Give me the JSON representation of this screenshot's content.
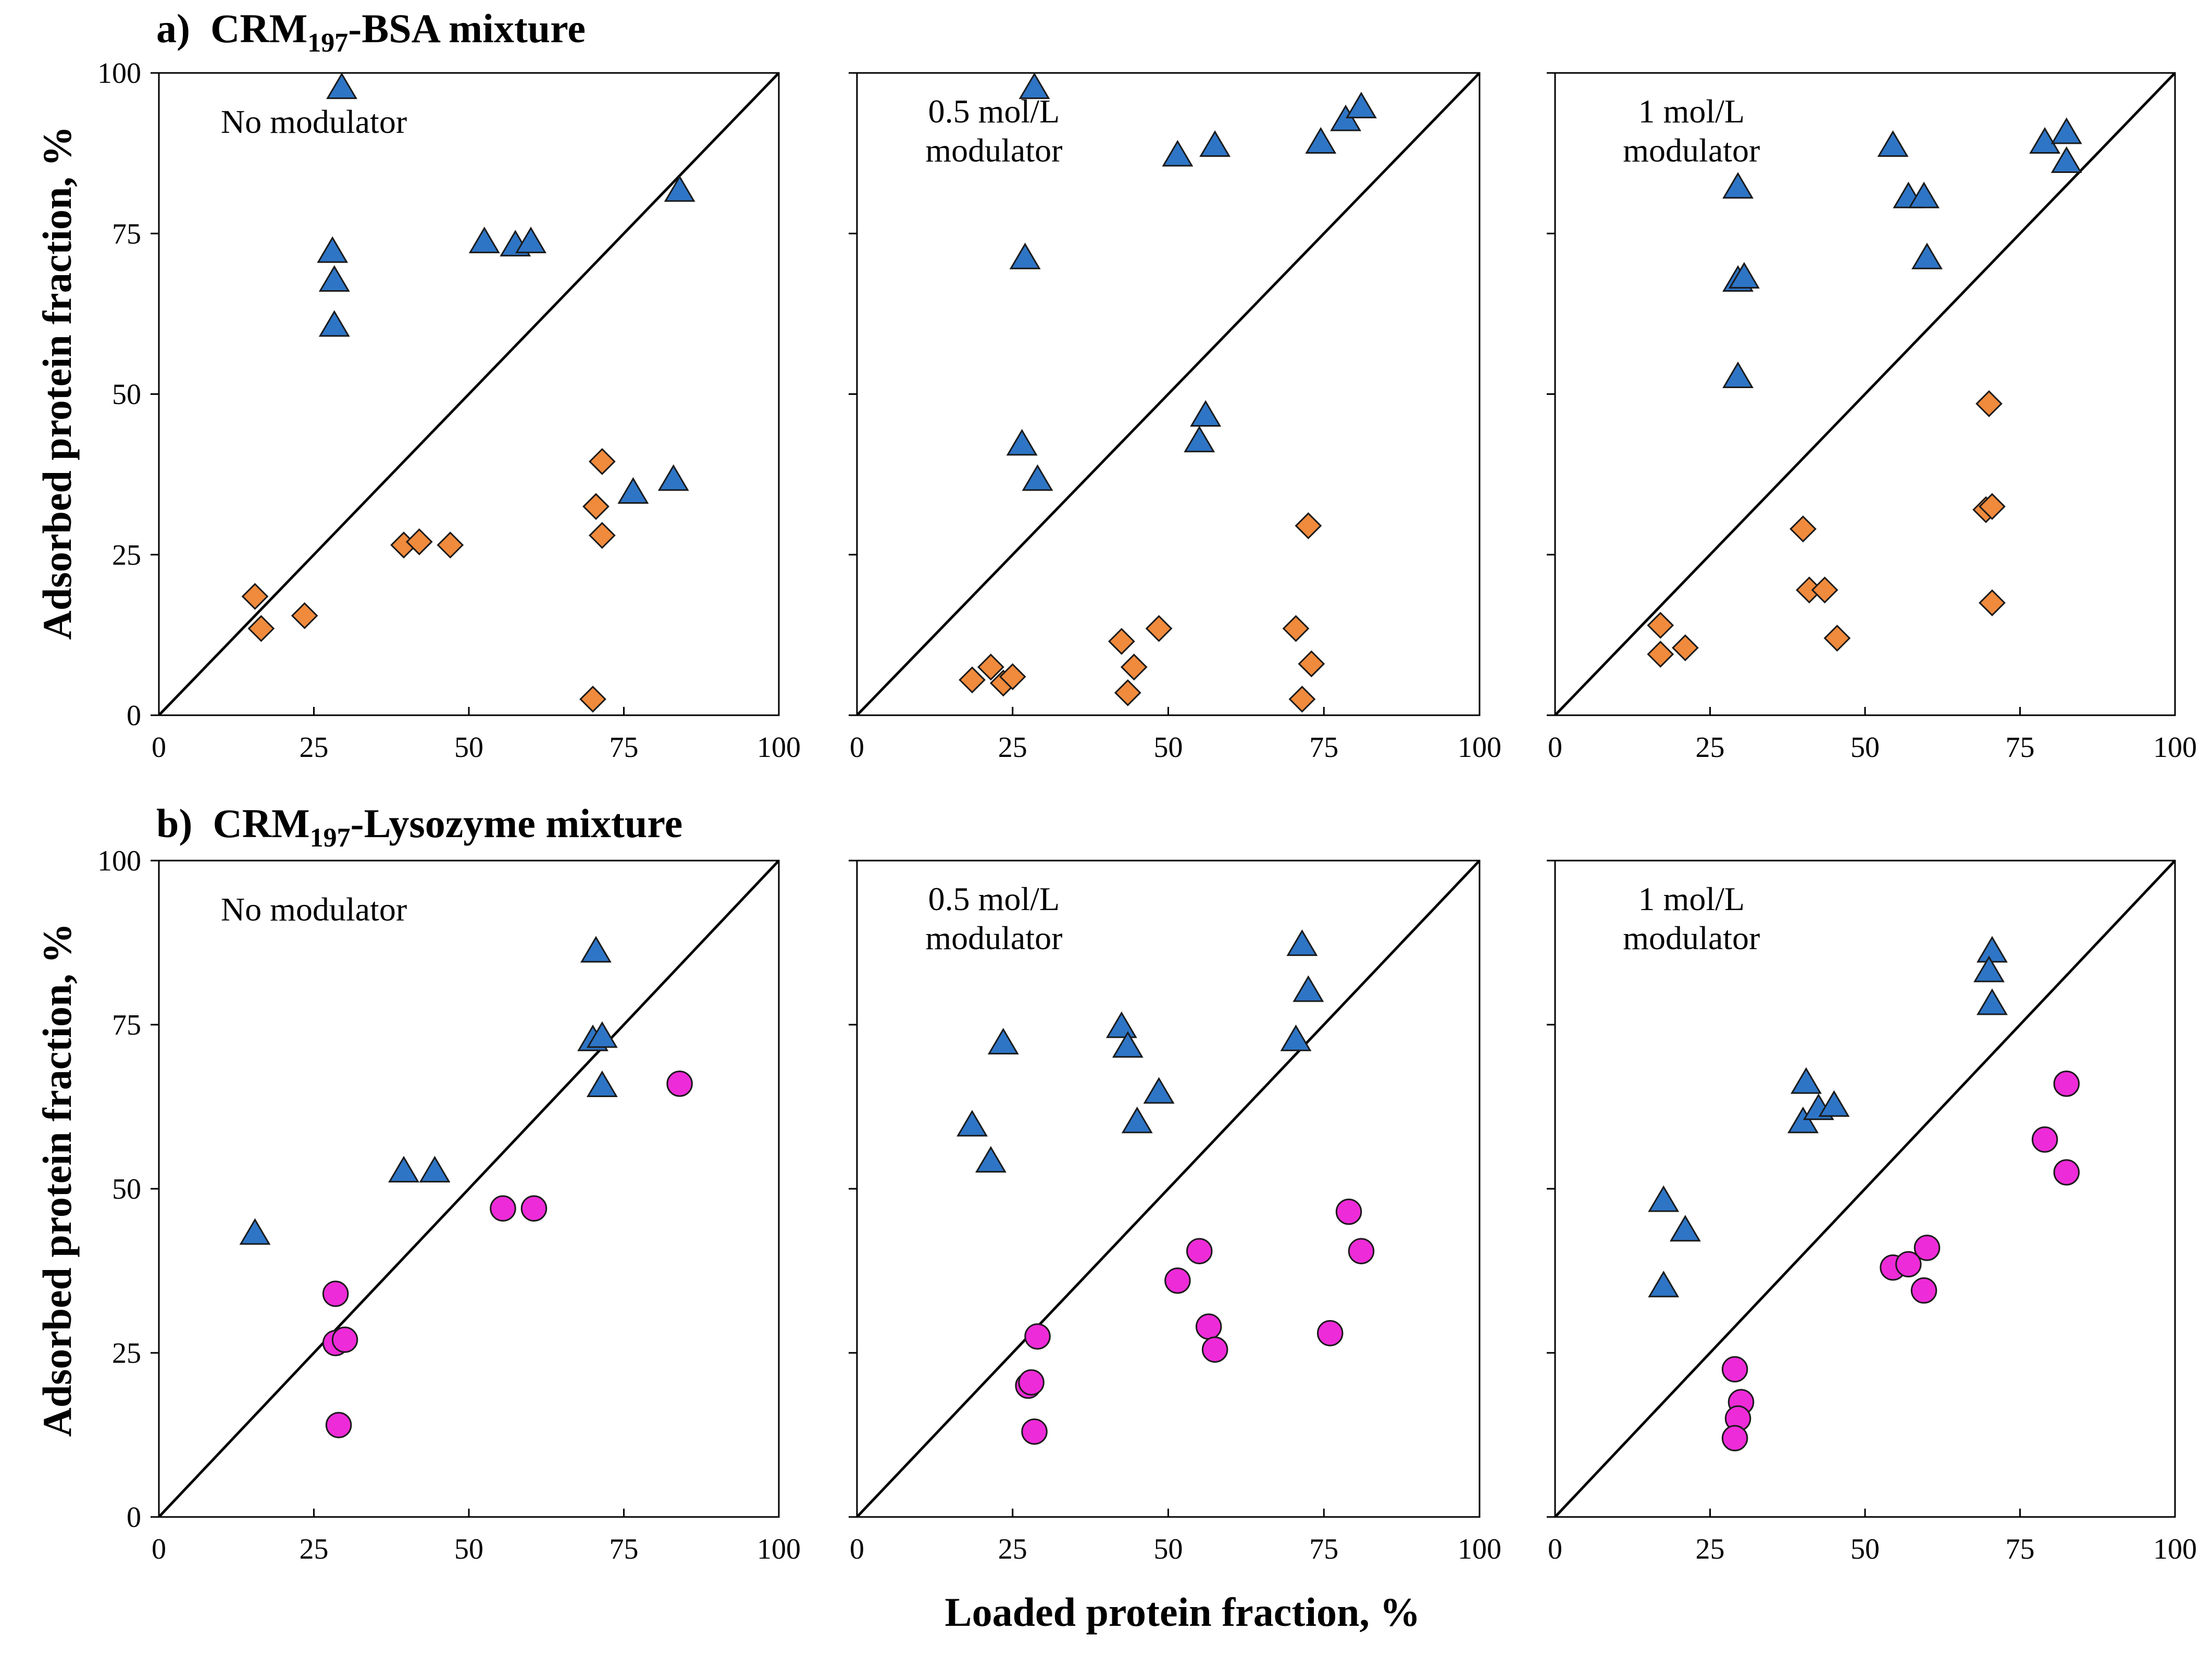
{
  "figure": {
    "shared_ylabel": "Adsorbed protein fraction, %",
    "shared_xlabel": "Loaded protein fraction, %"
  },
  "rows": [
    {
      "label": "a)",
      "title_pre": "CRM",
      "title_sub": "197",
      "title_post": "-BSA mixture"
    },
    {
      "label": "b)",
      "title_pre": "CRM",
      "title_sub": "197",
      "title_post": "-Lysozyme mixture"
    }
  ],
  "style": {
    "triangle_color": "#2E75C6",
    "diamond_color": "#F08A3C",
    "circle_color": "#EE2BD8",
    "marker_edge": "#1a1a1a"
  },
  "chart_data": [
    {
      "type": "scatter",
      "row": 0,
      "col": 0,
      "title_lines": [
        "No modulator"
      ],
      "xlim": [
        0,
        100
      ],
      "ylim": [
        0,
        100
      ],
      "xticks": [
        0,
        25,
        50,
        75,
        100
      ],
      "yticks": [
        0,
        25,
        50,
        75,
        100
      ],
      "show_ytick_labels": true,
      "diagonal": true,
      "series": [
        {
          "marker": "triangle",
          "points": [
            [
              29.5,
              97.5
            ],
            [
              28,
              72
            ],
            [
              28.3,
              67.5
            ],
            [
              28.3,
              60.5
            ],
            [
              52.5,
              73.5
            ],
            [
              57.5,
              73
            ],
            [
              60,
              73.5
            ],
            [
              84,
              81.5
            ],
            [
              76.5,
              34.5
            ],
            [
              83,
              36.5
            ]
          ]
        },
        {
          "marker": "diamond",
          "points": [
            [
              15.5,
              18.5
            ],
            [
              16.5,
              13.5
            ],
            [
              23.5,
              15.5
            ],
            [
              39.5,
              26.5
            ],
            [
              42,
              27
            ],
            [
              47,
              26.5
            ],
            [
              71.5,
              39.5
            ],
            [
              70.5,
              32.5
            ],
            [
              71.5,
              28
            ],
            [
              70,
              2.5
            ]
          ]
        }
      ]
    },
    {
      "type": "scatter",
      "row": 0,
      "col": 1,
      "title_lines": [
        "0.5 mol/L",
        "modulator"
      ],
      "xlim": [
        0,
        100
      ],
      "ylim": [
        0,
        100
      ],
      "xticks": [
        0,
        25,
        50,
        75,
        100
      ],
      "yticks": [
        0,
        25,
        50,
        75,
        100
      ],
      "show_ytick_labels": false,
      "diagonal": true,
      "series": [
        {
          "marker": "triangle",
          "points": [
            [
              28.5,
              97.5
            ],
            [
              27,
              71
            ],
            [
              51.5,
              87
            ],
            [
              57.5,
              88.5
            ],
            [
              74.5,
              89
            ],
            [
              78.5,
              92.5
            ],
            [
              81,
              94.5
            ],
            [
              26.5,
              42
            ],
            [
              29,
              36.5
            ],
            [
              55,
              42.5
            ],
            [
              56,
              46.5
            ]
          ]
        },
        {
          "marker": "diamond",
          "points": [
            [
              18.5,
              5.5
            ],
            [
              21.5,
              7.5
            ],
            [
              23.5,
              5
            ],
            [
              25,
              6
            ],
            [
              42.5,
              11.5
            ],
            [
              44.5,
              7.5
            ],
            [
              43.5,
              3.5
            ],
            [
              48.5,
              13.5
            ],
            [
              70.5,
              13.5
            ],
            [
              72.5,
              29.5
            ],
            [
              73,
              8
            ],
            [
              71.5,
              2.5
            ]
          ]
        }
      ]
    },
    {
      "type": "scatter",
      "row": 0,
      "col": 2,
      "title_lines": [
        "1 mol/L",
        "modulator"
      ],
      "xlim": [
        0,
        100
      ],
      "ylim": [
        0,
        100
      ],
      "xticks": [
        0,
        25,
        50,
        75,
        100
      ],
      "yticks": [
        0,
        25,
        50,
        75,
        100
      ],
      "show_ytick_labels": false,
      "diagonal": true,
      "series": [
        {
          "marker": "triangle",
          "points": [
            [
              29.5,
              82
            ],
            [
              29.5,
              67.5
            ],
            [
              30.5,
              68
            ],
            [
              29.5,
              52.5
            ],
            [
              54.5,
              88.5
            ],
            [
              57,
              80.5
            ],
            [
              59.5,
              80.5
            ],
            [
              60,
              71
            ],
            [
              79,
              89
            ],
            [
              82.5,
              90.5
            ],
            [
              82.5,
              86
            ]
          ]
        },
        {
          "marker": "diamond",
          "points": [
            [
              17,
              14
            ],
            [
              17,
              9.5
            ],
            [
              21,
              10.5
            ],
            [
              40,
              29
            ],
            [
              41,
              19.5
            ],
            [
              43.5,
              19.5
            ],
            [
              45.5,
              12
            ],
            [
              70,
              48.5
            ],
            [
              69.5,
              32
            ],
            [
              70.5,
              32.5
            ],
            [
              70.5,
              17.5
            ]
          ]
        }
      ]
    },
    {
      "type": "scatter",
      "row": 1,
      "col": 0,
      "title_lines": [
        "No modulator"
      ],
      "xlim": [
        0,
        100
      ],
      "ylim": [
        0,
        100
      ],
      "xticks": [
        0,
        25,
        50,
        75,
        100
      ],
      "yticks": [
        0,
        25,
        50,
        75,
        100
      ],
      "show_ytick_labels": true,
      "diagonal": true,
      "series": [
        {
          "marker": "triangle",
          "points": [
            [
              15.5,
              43
            ],
            [
              39.5,
              52.5
            ],
            [
              44.5,
              52.5
            ],
            [
              70.5,
              86
            ],
            [
              70,
              72.5
            ],
            [
              71.5,
              73
            ],
            [
              71.5,
              65.5
            ]
          ]
        },
        {
          "marker": "circle",
          "points": [
            [
              28.5,
              34
            ],
            [
              28.5,
              26.5
            ],
            [
              30,
              27
            ],
            [
              29,
              14
            ],
            [
              55.5,
              47
            ],
            [
              60.5,
              47
            ],
            [
              84,
              66
            ]
          ]
        }
      ]
    },
    {
      "type": "scatter",
      "row": 1,
      "col": 1,
      "title_lines": [
        "0.5 mol/L",
        "modulator"
      ],
      "xlim": [
        0,
        100
      ],
      "ylim": [
        0,
        100
      ],
      "xticks": [
        0,
        25,
        50,
        75,
        100
      ],
      "yticks": [
        0,
        25,
        50,
        75,
        100
      ],
      "show_ytick_labels": false,
      "diagonal": true,
      "series": [
        {
          "marker": "triangle",
          "points": [
            [
              18.5,
              59.5
            ],
            [
              21.5,
              54
            ],
            [
              23.5,
              72
            ],
            [
              42.5,
              74.5
            ],
            [
              43.5,
              71.5
            ],
            [
              45,
              60
            ],
            [
              48.5,
              64.5
            ],
            [
              71.5,
              87
            ],
            [
              70.5,
              72.5
            ],
            [
              72.5,
              80
            ]
          ]
        },
        {
          "marker": "circle",
          "points": [
            [
              29,
              27.5
            ],
            [
              27.5,
              20
            ],
            [
              28,
              20.5
            ],
            [
              28.5,
              13
            ],
            [
              51.5,
              36
            ],
            [
              55,
              40.5
            ],
            [
              56.5,
              29
            ],
            [
              57.5,
              25.5
            ],
            [
              76,
              28
            ],
            [
              79,
              46.5
            ],
            [
              81,
              40.5
            ]
          ]
        }
      ]
    },
    {
      "type": "scatter",
      "row": 1,
      "col": 2,
      "title_lines": [
        "1 mol/L",
        "modulator"
      ],
      "xlim": [
        0,
        100
      ],
      "ylim": [
        0,
        100
      ],
      "xticks": [
        0,
        25,
        50,
        75,
        100
      ],
      "yticks": [
        0,
        25,
        50,
        75,
        100
      ],
      "show_ytick_labels": false,
      "diagonal": true,
      "series": [
        {
          "marker": "triangle",
          "points": [
            [
              17.5,
              48
            ],
            [
              21,
              43.5
            ],
            [
              17.5,
              35
            ],
            [
              40.5,
              66
            ],
            [
              40,
              60
            ],
            [
              42.5,
              62
            ],
            [
              45,
              62.5
            ],
            [
              70.5,
              86
            ],
            [
              70,
              83
            ],
            [
              70.5,
              78
            ]
          ]
        },
        {
          "marker": "circle",
          "points": [
            [
              29,
              22.5
            ],
            [
              30,
              17.5
            ],
            [
              29.5,
              15
            ],
            [
              29,
              12
            ],
            [
              54.5,
              38
            ],
            [
              57,
              38.5
            ],
            [
              59.5,
              34.5
            ],
            [
              60,
              41
            ],
            [
              79,
              57.5
            ],
            [
              82.5,
              66
            ],
            [
              82.5,
              52.5
            ]
          ]
        }
      ]
    }
  ]
}
